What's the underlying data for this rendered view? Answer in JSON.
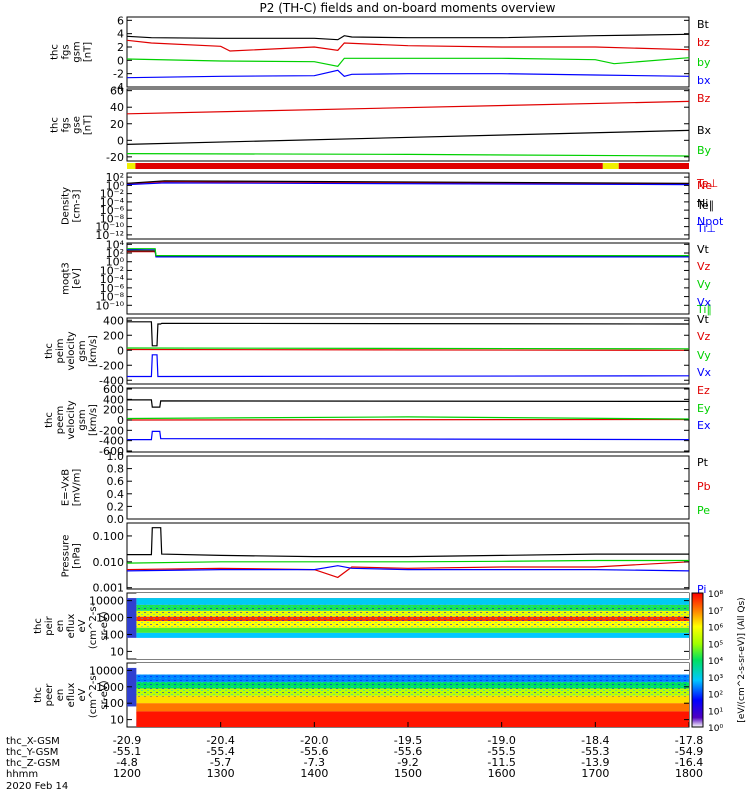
{
  "title": "P2 (TH-C) fields and on-board moments overview",
  "colors": {
    "black": "#000000",
    "red": "#e00000",
    "green": "#00d000",
    "blue": "#0000ff",
    "yellow": "#f0f000"
  },
  "chart_data": [
    {
      "type": "line",
      "ylabel": [
        "thc",
        "fgs",
        "gsm",
        "[nT]"
      ],
      "ylim": [
        -4,
        6.5
      ],
      "yticks": [
        {
          "v": 6,
          "t": "6"
        },
        {
          "v": 4,
          "t": "4"
        },
        {
          "v": 2,
          "t": "2"
        },
        {
          "v": 0,
          "t": "0"
        },
        {
          "v": -2,
          "t": "-2"
        },
        {
          "v": -4,
          "t": "-4"
        }
      ],
      "series": [
        {
          "name": "Bt",
          "color": "black",
          "x": [
            1200,
            1226,
            1300,
            1400,
            1425,
            1432,
            1440,
            1500,
            1600,
            1700,
            1800
          ],
          "y": [
            3.6,
            3.4,
            3.3,
            3.3,
            3.1,
            3.7,
            3.5,
            3.4,
            3.4,
            3.7,
            3.9
          ]
        },
        {
          "name": "bz",
          "color": "red",
          "x": [
            1200,
            1226,
            1300,
            1310,
            1400,
            1425,
            1432,
            1500,
            1600,
            1700,
            1800
          ],
          "y": [
            3.0,
            2.6,
            2.1,
            1.4,
            2.0,
            1.5,
            2.6,
            2.2,
            2.0,
            2.0,
            1.6
          ]
        },
        {
          "name": "by",
          "color": "green",
          "x": [
            1200,
            1300,
            1400,
            1425,
            1432,
            1500,
            1600,
            1700,
            1720,
            1800
          ],
          "y": [
            0.2,
            -0.1,
            -0.2,
            -0.9,
            0.3,
            0.3,
            0.3,
            0.1,
            -0.5,
            0.4
          ]
        },
        {
          "name": "bx",
          "color": "blue",
          "x": [
            1200,
            1300,
            1400,
            1425,
            1432,
            1440,
            1500,
            1600,
            1700,
            1800
          ],
          "y": [
            -2.6,
            -2.4,
            -2.3,
            -1.5,
            -2.4,
            -2.1,
            -2.0,
            -2.0,
            -2.2,
            -2.4
          ]
        }
      ]
    },
    {
      "type": "line",
      "ylabel": [
        "thc",
        "fgs",
        "gse",
        "[nT]"
      ],
      "ylim": [
        -25,
        62
      ],
      "yticks": [
        {
          "v": 60,
          "t": "60"
        },
        {
          "v": 40,
          "t": "40"
        },
        {
          "v": 20,
          "t": "20"
        },
        {
          "v": 0,
          "t": "0"
        },
        {
          "v": -20,
          "t": "-20"
        }
      ],
      "series": [
        {
          "name": "Bz",
          "color": "red",
          "x": [
            1200,
            1800
          ],
          "y": [
            32,
            47
          ]
        },
        {
          "name": "Bx",
          "color": "black",
          "x": [
            1200,
            1800
          ],
          "y": [
            -5,
            12
          ]
        },
        {
          "name": "By",
          "color": "green",
          "x": [
            1200,
            1500,
            1800
          ],
          "y": [
            -16,
            -17,
            -19
          ]
        }
      ]
    },
    {
      "type": "bar",
      "name": "mode",
      "segments": [
        {
          "x0": 1200,
          "x1": 1209,
          "color": "yellow"
        },
        {
          "x0": 1209,
          "x1": 1708,
          "color": "red"
        },
        {
          "x0": 1708,
          "x1": 1725,
          "color": "yellow"
        },
        {
          "x0": 1725,
          "x1": 1800,
          "color": "red"
        }
      ]
    },
    {
      "type": "line",
      "ylabel": [
        "Density",
        "[cm-3]"
      ],
      "scale": "log",
      "ylim": [
        -13,
        3
      ],
      "yticks": [
        {
          "v": 2,
          "t": "10²"
        },
        {
          "v": 0,
          "t": "10⁰"
        },
        {
          "v": -2,
          "t": "10⁻²"
        },
        {
          "v": -4,
          "t": "10⁻⁴"
        },
        {
          "v": -6,
          "t": "10⁻⁶"
        },
        {
          "v": -8,
          "t": "10⁻⁸"
        },
        {
          "v": -10,
          "t": "10⁻¹⁰"
        },
        {
          "v": -12,
          "t": "10⁻¹²"
        }
      ],
      "series": [
        {
          "name": "Ne",
          "color": "red",
          "x": [
            1200,
            1240,
            1800
          ],
          "y": [
            0.4,
            0.9,
            0.3
          ]
        },
        {
          "name": "Ni",
          "color": "black",
          "x": [
            1200,
            1240,
            1800
          ],
          "y": [
            0.5,
            1.1,
            0.5
          ]
        },
        {
          "name": "Npot",
          "color": "blue",
          "x": [
            1200,
            1240,
            1800
          ],
          "y": [
            0.2,
            0.6,
            0.2
          ]
        }
      ]
    },
    {
      "type": "line",
      "ylabel": [
        "moqt3",
        "[eV]"
      ],
      "scale": "log",
      "ylim": [
        -12,
        4.3
      ],
      "yticks": [
        {
          "v": 4,
          "t": "10⁴"
        },
        {
          "v": 2,
          "t": "10²"
        },
        {
          "v": 0,
          "t": "10⁰"
        },
        {
          "v": -2,
          "t": "10⁻²"
        },
        {
          "v": -4,
          "t": "10⁻⁴"
        },
        {
          "v": -6,
          "t": "10⁻⁶"
        },
        {
          "v": -8,
          "t": "10⁻⁸"
        },
        {
          "v": -10,
          "t": "10⁻¹⁰"
        }
      ],
      "series": [
        {
          "name": "Te⊥",
          "color": "red",
          "x": [
            1200,
            1230,
            1231,
            1800
          ],
          "y": [
            2.3,
            2.3,
            1.2,
            1.2
          ]
        },
        {
          "name": "Te∥",
          "color": "black",
          "x": [
            1200,
            1230,
            1231,
            1800
          ],
          "y": [
            2.5,
            2.5,
            1.3,
            1.3
          ]
        },
        {
          "name": "Ti⊥",
          "color": "blue",
          "x": [
            1200,
            1230,
            1231,
            1800
          ],
          "y": [
            2.8,
            2.9,
            1.1,
            1.1
          ]
        },
        {
          "name": "Ti∥",
          "color": "green",
          "x": [
            1200,
            1230,
            1231,
            1800
          ],
          "y": [
            3.0,
            3.0,
            1.4,
            1.4
          ]
        }
      ]
    },
    {
      "type": "line",
      "ylabel": [
        "thc",
        "peim",
        "velocity",
        "gsm",
        "[km/s]"
      ],
      "ylim": [
        -450,
        430
      ],
      "yticks": [
        {
          "v": 400,
          "t": "400"
        },
        {
          "v": 200,
          "t": "200"
        },
        {
          "v": 0,
          "t": "0"
        },
        {
          "v": -200,
          "t": "-200"
        },
        {
          "v": -400,
          "t": "-400"
        }
      ],
      "series": [
        {
          "name": "Vt",
          "color": "black",
          "x": [
            1200,
            1226,
            1227,
            1232,
            1233,
            1236,
            1237,
            1800
          ],
          "y": [
            380,
            380,
            60,
            60,
            350,
            350,
            360,
            350
          ]
        },
        {
          "name": "Vz",
          "color": "red",
          "x": [
            1200,
            1800
          ],
          "y": [
            10,
            0
          ]
        },
        {
          "name": "Vy",
          "color": "green",
          "x": [
            1200,
            1800
          ],
          "y": [
            30,
            20
          ]
        },
        {
          "name": "Vx",
          "color": "blue",
          "x": [
            1200,
            1226,
            1227,
            1232,
            1233,
            1236,
            1237,
            1800
          ],
          "y": [
            -350,
            -350,
            -60,
            -60,
            -350,
            -350,
            -350,
            -340
          ]
        }
      ]
    },
    {
      "type": "line",
      "ylabel": [
        "thc",
        "peem",
        "velocity",
        "gsm",
        "[km/s]"
      ],
      "ylim": [
        -620,
        620
      ],
      "yticks": [
        {
          "v": 600,
          "t": "600"
        },
        {
          "v": 400,
          "t": "400"
        },
        {
          "v": 200,
          "t": "200"
        },
        {
          "v": 0,
          "t": "0"
        },
        {
          "v": -200,
          "t": "-200"
        },
        {
          "v": -400,
          "t": "-400"
        },
        {
          "v": -600,
          "t": "-600"
        }
      ],
      "series": [
        {
          "name": "Vt",
          "color": "black",
          "x": [
            1200,
            1226,
            1227,
            1235,
            1236,
            1800
          ],
          "y": [
            390,
            390,
            250,
            250,
            370,
            360
          ]
        },
        {
          "name": "Vz",
          "color": "red",
          "x": [
            1200,
            1800
          ],
          "y": [
            0,
            10
          ]
        },
        {
          "name": "Vy",
          "color": "green",
          "x": [
            1200,
            1500,
            1800
          ],
          "y": [
            30,
            60,
            20
          ]
        },
        {
          "name": "Vx",
          "color": "blue",
          "x": [
            1200,
            1226,
            1227,
            1235,
            1236,
            1800
          ],
          "y": [
            -380,
            -380,
            -220,
            -220,
            -360,
            -380
          ]
        }
      ]
    },
    {
      "type": "line",
      "ylabel": [
        "E=-VxB",
        "[mV/m]"
      ],
      "ylim": [
        0,
        1
      ],
      "yticks": [
        {
          "v": 1.0,
          "t": "1.0"
        },
        {
          "v": 0.8,
          "t": "0.8"
        },
        {
          "v": 0.6,
          "t": "0.6"
        },
        {
          "v": 0.4,
          "t": "0.4"
        },
        {
          "v": 0.2,
          "t": "0.2"
        },
        {
          "v": 0.0,
          "t": "0.0"
        }
      ],
      "series": [
        {
          "name": "Ez",
          "color": "red",
          "x": [],
          "y": []
        },
        {
          "name": "Ey",
          "color": "green",
          "x": [],
          "y": []
        },
        {
          "name": "Ex",
          "color": "blue",
          "x": [],
          "y": []
        }
      ]
    },
    {
      "type": "line",
      "ylabel": [
        "Pressure",
        "[nPa]"
      ],
      "scale": "log",
      "ylim": [
        -3.05,
        -0.5
      ],
      "yticks": [
        {
          "v": -1,
          "t": "0.100"
        },
        {
          "v": -2,
          "t": "0.010"
        },
        {
          "v": -3,
          "t": "0.001"
        }
      ],
      "series": [
        {
          "name": "Pt",
          "color": "black",
          "x": [
            1200,
            1226,
            1227,
            1236,
            1237,
            1300,
            1400,
            1500,
            1600,
            1700,
            1800
          ],
          "y": [
            -1.72,
            -1.72,
            -0.68,
            -0.68,
            -1.7,
            -1.75,
            -1.8,
            -1.8,
            -1.75,
            -1.7,
            -1.7
          ]
        },
        {
          "name": "Pb",
          "color": "red",
          "x": [
            1200,
            1300,
            1400,
            1425,
            1440,
            1500,
            1600,
            1700,
            1800
          ],
          "y": [
            -2.3,
            -2.25,
            -2.3,
            -2.6,
            -2.2,
            -2.25,
            -2.2,
            -2.2,
            -2.0
          ]
        },
        {
          "name": "Pe",
          "color": "green",
          "x": [
            1200,
            1300,
            1400,
            1500,
            1600,
            1700,
            1800
          ],
          "y": [
            -2.05,
            -2.0,
            -2.0,
            -2.0,
            -1.98,
            -1.95,
            -1.95
          ]
        },
        {
          "name": "Pi",
          "color": "blue",
          "x": [
            1200,
            1300,
            1400,
            1425,
            1440,
            1500,
            1600,
            1700,
            1800
          ],
          "y": [
            -2.35,
            -2.3,
            -2.3,
            -2.15,
            -2.25,
            -2.3,
            -2.3,
            -2.3,
            -2.35
          ]
        }
      ]
    },
    {
      "type": "heatmap",
      "ylabel": [
        "thc",
        "peir",
        "en",
        "eflux",
        "eV",
        "(cm^2-s-",
        "sr-eV)"
      ],
      "scale": "log",
      "ylim": [
        0.55,
        4.45
      ],
      "yticks": [
        {
          "v": 4,
          "t": "10000"
        },
        {
          "v": 3,
          "t": "1000"
        },
        {
          "v": 2,
          "t": "100"
        },
        {
          "v": 1,
          "t": "10"
        }
      ],
      "bands": [
        {
          "lo": 0.55,
          "hi": 1.8,
          "level": 0.0
        },
        {
          "lo": 1.8,
          "hi": 2.1,
          "level": 0.35
        },
        {
          "lo": 2.1,
          "hi": 2.4,
          "level": 0.55
        },
        {
          "lo": 2.4,
          "hi": 2.8,
          "level": 0.75
        },
        {
          "lo": 2.8,
          "hi": 3.05,
          "level": 0.95
        },
        {
          "lo": 3.05,
          "hi": 3.4,
          "level": 0.72
        },
        {
          "lo": 3.4,
          "hi": 3.75,
          "level": 0.52
        },
        {
          "lo": 3.75,
          "hi": 4.15,
          "level": 0.36
        },
        {
          "lo": 4.15,
          "hi": 4.45,
          "level": 0.0
        }
      ]
    },
    {
      "type": "heatmap",
      "ylabel": [
        "thc",
        "peer",
        "en",
        "eflux",
        "eV",
        "(cm^2-s-",
        "sr-eV)"
      ],
      "scale": "log",
      "ylim": [
        0.55,
        4.45
      ],
      "yticks": [
        {
          "v": 4,
          "t": "10000"
        },
        {
          "v": 3,
          "t": "1000"
        },
        {
          "v": 2,
          "t": "100"
        },
        {
          "v": 1,
          "t": "10"
        }
      ],
      "bands": [
        {
          "lo": 0.55,
          "hi": 1.5,
          "level": 0.98
        },
        {
          "lo": 1.5,
          "hi": 2.0,
          "level": 0.88
        },
        {
          "lo": 2.0,
          "hi": 2.45,
          "level": 0.78
        },
        {
          "lo": 2.45,
          "hi": 2.9,
          "level": 0.66
        },
        {
          "lo": 2.9,
          "hi": 3.3,
          "level": 0.5
        },
        {
          "lo": 3.3,
          "hi": 3.75,
          "level": 0.3
        },
        {
          "lo": 3.75,
          "hi": 4.45,
          "level": 0.0
        }
      ]
    }
  ],
  "colorbar": {
    "label": "[eV/(cm^2-s-sr-eV)] (All Qs)",
    "ticks": [
      "10⁸",
      "10⁷",
      "10⁶",
      "10⁵",
      "10⁴",
      "10³",
      "10²",
      "10¹",
      "10⁰"
    ]
  },
  "xaxis": {
    "xlim": [
      1200,
      1800
    ],
    "ticks": [
      1200,
      1300,
      1400,
      1500,
      1600,
      1700,
      1800
    ],
    "rows": [
      {
        "label": "thc_X-GSM",
        "values": [
          "-20.9",
          "-20.4",
          "-20.0",
          "-19.5",
          "-19.0",
          "-18.4",
          "-17.8"
        ]
      },
      {
        "label": "thc_Y-GSM",
        "values": [
          "-55.1",
          "-55.4",
          "-55.6",
          "-55.6",
          "-55.5",
          "-55.3",
          "-54.9"
        ]
      },
      {
        "label": "thc_Z-GSM",
        "values": [
          "-4.8",
          "-5.7",
          "-7.3",
          "-9.2",
          "-11.5",
          "-13.9",
          "-16.4"
        ]
      },
      {
        "label": "hhmm",
        "values": [
          "1200",
          "1300",
          "1400",
          "1500",
          "1600",
          "1700",
          "1800"
        ]
      }
    ],
    "date": "2020 Feb 14"
  }
}
